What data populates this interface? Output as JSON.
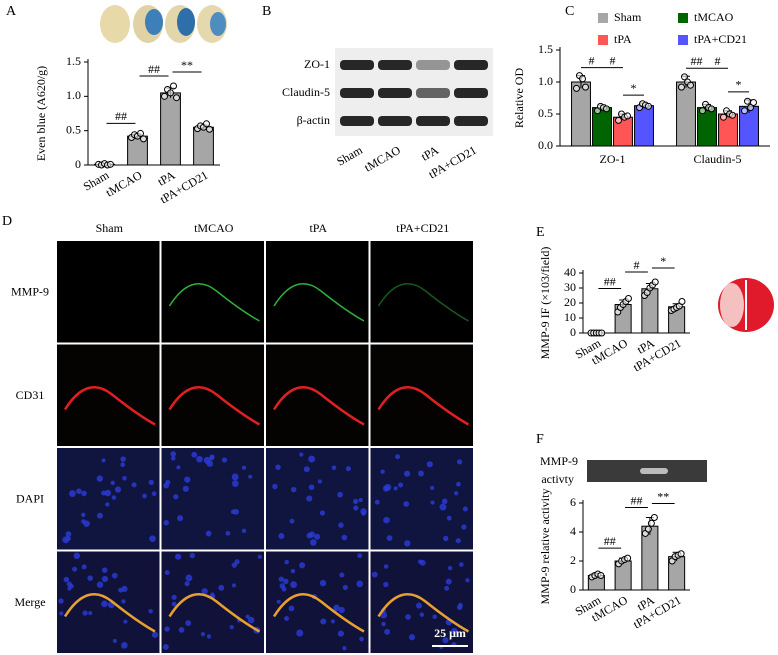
{
  "chart_data": [
    {
      "type": "bar",
      "panel": "A",
      "y_label": "Even blue (A620/g)",
      "color": "#a6a6a6",
      "categories": [
        "Sham",
        "tMCAO",
        "tPA",
        "tPA+CD21"
      ],
      "values": [
        0.01,
        0.42,
        1.05,
        0.55
      ],
      "errors": [
        0.01,
        0.03,
        0.07,
        0.03
      ],
      "points": [
        [
          0.01,
          0.0,
          0.02,
          0.0,
          0.01
        ],
        [
          0.4,
          0.44,
          0.42,
          0.46,
          0.38
        ],
        [
          1.0,
          1.1,
          1.05,
          1.15,
          0.98
        ],
        [
          0.53,
          0.57,
          0.55,
          0.6,
          0.52
        ]
      ],
      "significance": [
        "##",
        "##",
        "**"
      ],
      "ylim": [
        0,
        1.5
      ],
      "yticks": [
        0,
        0.5,
        {
          "value": 1,
          "label": "1.0"
        },
        1.5
      ]
    },
    {
      "type": "grouped_bar",
      "panel": "C",
      "y_label": "Relative OD",
      "categories": [
        "ZO-1",
        "Claudin-5"
      ],
      "series": [
        {
          "name": "Sham",
          "color": "#a6a6a6",
          "values": [
            1.0,
            1.0
          ],
          "errors": [
            0.1,
            0.09
          ],
          "points": [
            [
              0.9,
              1.1,
              1.05,
              0.92
            ],
            [
              0.92,
              1.08,
              1.0,
              0.95
            ]
          ]
        },
        {
          "name": "tMCAO",
          "color": "#006400",
          "values": [
            0.6,
            0.6
          ],
          "errors": [
            0.04,
            0.05
          ],
          "points": [
            [
              0.55,
              0.62,
              0.6,
              0.58
            ],
            [
              0.55,
              0.65,
              0.6,
              0.58
            ]
          ]
        },
        {
          "name": "tPA",
          "color": "#ff5555",
          "values": [
            0.45,
            0.5
          ],
          "errors": [
            0.05,
            0.05
          ],
          "points": [
            [
              0.4,
              0.5,
              0.45,
              0.47
            ],
            [
              0.45,
              0.55,
              0.5,
              0.48
            ]
          ]
        },
        {
          "name": "tPA+CD21",
          "color": "#5555ff",
          "values": [
            0.63,
            0.62
          ],
          "errors": [
            0.04,
            0.1
          ],
          "points": [
            [
              0.6,
              0.66,
              0.64,
              0.62
            ],
            [
              0.55,
              0.7,
              0.6,
              0.68
            ]
          ]
        }
      ],
      "significance": [
        [
          "#",
          "#",
          "*"
        ],
        [
          "##",
          "#",
          "*"
        ]
      ],
      "ylim": [
        0,
        1.5
      ],
      "yticks": [
        {
          "value": 0,
          "label": "0.0"
        },
        0.5,
        {
          "value": 1,
          "label": "1.0"
        },
        1.5
      ]
    },
    {
      "type": "bar",
      "panel": "E",
      "y_label": "MMP-9 IF (×103/field)",
      "color": "#a6a6a6",
      "categories": [
        "Sham",
        "tMCAO",
        "tPA",
        "tPA+CD21"
      ],
      "values": [
        0,
        19,
        29.5,
        17.5
      ],
      "errors": [
        0.3,
        3,
        3.5,
        2
      ],
      "points": [
        [
          0,
          0,
          0,
          0,
          0
        ],
        [
          14,
          17,
          19,
          21,
          23
        ],
        [
          25,
          27,
          30,
          32,
          34
        ],
        [
          15,
          16,
          17,
          18,
          21
        ]
      ],
      "significance": [
        "##",
        "#",
        "*"
      ],
      "ylim": [
        0,
        40
      ],
      "yticks": [
        0,
        10,
        20,
        30,
        40
      ]
    },
    {
      "type": "bar",
      "panel": "F",
      "y_label": "MMP-9 relative activity",
      "color": "#a6a6a6",
      "gel_label": [
        "MMP-9",
        "activty"
      ],
      "categories": [
        "Sham",
        "tMCAO",
        "tPA",
        "tPA+CD21"
      ],
      "values": [
        1.0,
        2.0,
        4.4,
        2.3
      ],
      "errors": [
        0.15,
        0.2,
        0.6,
        0.3
      ],
      "points": [
        [
          0.9,
          1.0,
          1.1,
          1.0
        ],
        [
          1.8,
          2.0,
          2.1,
          2.2
        ],
        [
          3.9,
          4.2,
          4.6,
          5.0
        ],
        [
          2.0,
          2.3,
          2.4,
          2.5
        ]
      ],
      "significance": [
        "##",
        "##",
        "**"
      ],
      "ylim": [
        0,
        6
      ],
      "yticks": [
        0,
        2,
        4,
        6
      ]
    }
  ],
  "blot": {
    "panel": "B",
    "rows": [
      "ZO-1",
      "Claudin-5",
      "β-actin"
    ],
    "lanes": [
      "Sham",
      "tMCAO",
      "tPA",
      "tPA+CD21"
    ]
  },
  "micrographs": {
    "panel": "D",
    "columns": [
      "Sham",
      "tMCAO",
      "tPA",
      "tPA+CD21"
    ],
    "rows": [
      "MMP-9",
      "CD31",
      "DAPI",
      "Merge"
    ],
    "scale_bar": "25 μm"
  }
}
